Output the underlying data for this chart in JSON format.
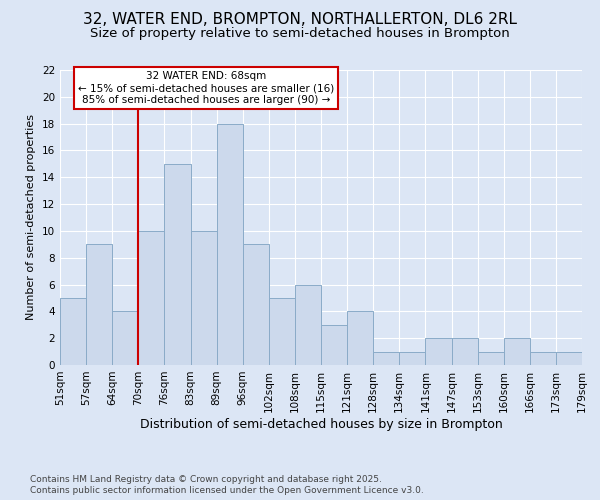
{
  "title": "32, WATER END, BROMPTON, NORTHALLERTON, DL6 2RL",
  "subtitle": "Size of property relative to semi-detached houses in Brompton",
  "xlabel": "Distribution of semi-detached houses by size in Brompton",
  "ylabel": "Number of semi-detached properties",
  "bar_labels": [
    "51sqm",
    "57sqm",
    "64sqm",
    "70sqm",
    "76sqm",
    "83sqm",
    "89sqm",
    "96sqm",
    "102sqm",
    "108sqm",
    "115sqm",
    "121sqm",
    "128sqm",
    "134sqm",
    "141sqm",
    "147sqm",
    "153sqm",
    "160sqm",
    "166sqm",
    "173sqm",
    "179sqm"
  ],
  "bar_values": [
    5,
    9,
    4,
    10,
    15,
    10,
    18,
    9,
    5,
    6,
    3,
    4,
    1,
    1,
    2,
    2,
    1,
    2,
    1,
    1
  ],
  "bar_color": "#ccd9ec",
  "bar_edge_color": "#8aabc8",
  "background_color": "#dce6f5",
  "grid_color": "#ffffff",
  "vline_color": "#cc0000",
  "ylim": [
    0,
    22
  ],
  "yticks": [
    0,
    2,
    4,
    6,
    8,
    10,
    12,
    14,
    16,
    18,
    20,
    22
  ],
  "annotation_title": "32 WATER END: 68sqm",
  "annotation_line1": "← 15% of semi-detached houses are smaller (16)",
  "annotation_line2": "85% of semi-detached houses are larger (90) →",
  "annotation_box_color": "#ffffff",
  "annotation_border_color": "#cc0000",
  "footnote1": "Contains HM Land Registry data © Crown copyright and database right 2025.",
  "footnote2": "Contains public sector information licensed under the Open Government Licence v3.0.",
  "title_fontsize": 11,
  "subtitle_fontsize": 9.5,
  "xlabel_fontsize": 9,
  "ylabel_fontsize": 8,
  "tick_fontsize": 7.5,
  "annotation_fontsize": 7.5,
  "footnote_fontsize": 6.5,
  "vline_index": 3
}
